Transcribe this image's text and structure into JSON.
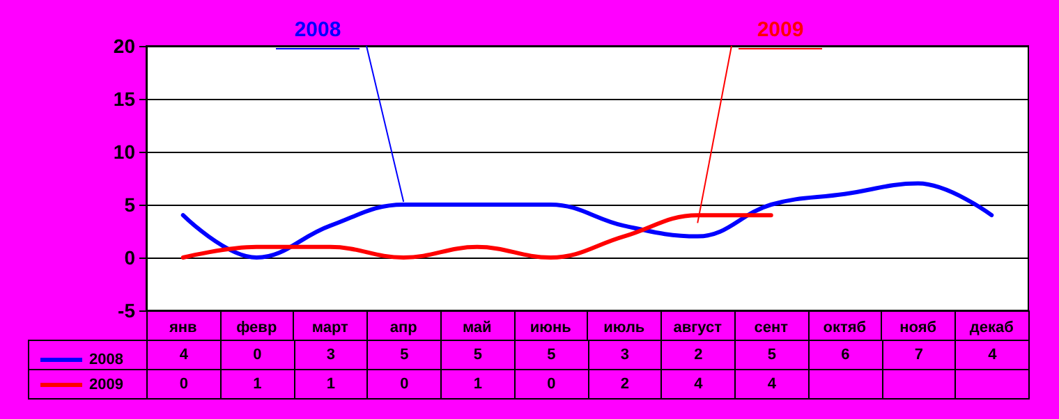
{
  "chart_data": {
    "type": "line",
    "categories": [
      "янв",
      "февр",
      "март",
      "апр",
      "май",
      "июнь",
      "июль",
      "август",
      "сент",
      "октяб",
      "нояб",
      "декаб"
    ],
    "series": [
      {
        "name": "2008",
        "color": "#0000ff",
        "values": [
          4,
          0,
          3,
          5,
          5,
          5,
          3,
          2,
          5,
          6,
          7,
          4
        ]
      },
      {
        "name": "2009",
        "color": "#ff0000",
        "values": [
          0,
          1,
          1,
          0,
          1,
          0,
          2,
          4,
          4,
          null,
          null,
          null
        ]
      }
    ],
    "ylim": [
      -5,
      20
    ],
    "yticks": [
      -5,
      0,
      5,
      10,
      15,
      20
    ],
    "grid": "y",
    "legend": "bottom left",
    "data_labels": true,
    "marker": "none",
    "line_style": "solid"
  }
}
